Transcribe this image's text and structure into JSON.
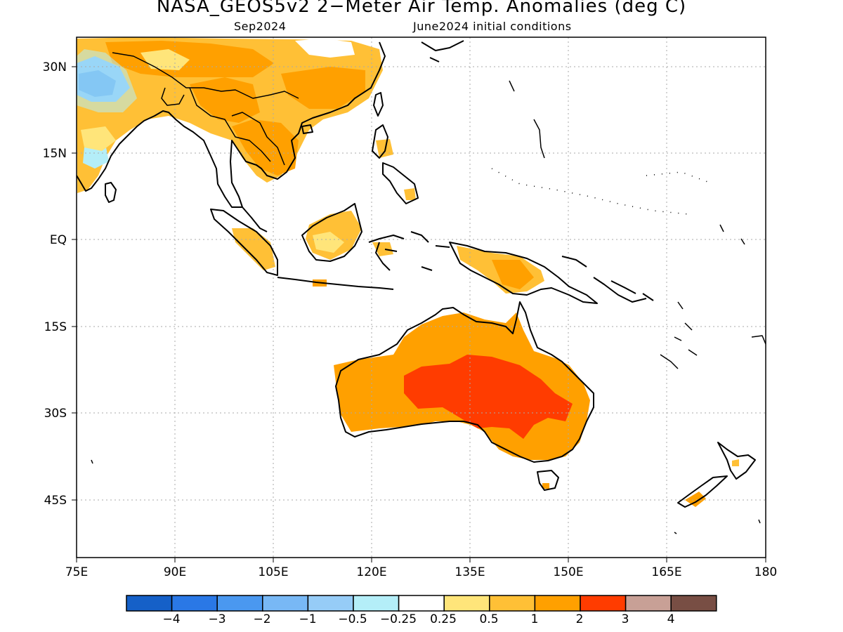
{
  "header": {
    "title": "NASA_GEOS5v2 2−Meter Air Temp. Anomalies (deg C)",
    "subtitle_left": "Sep2024",
    "subtitle_right": "June2024 initial conditions"
  },
  "map": {
    "lon_range": [
      75,
      180
    ],
    "lat_range": [
      -55,
      35
    ],
    "lon_ticks": [
      "75E",
      "90E",
      "105E",
      "120E",
      "135E",
      "150E",
      "165E",
      "180"
    ],
    "lat_ticks": [
      "30N",
      "15N",
      "EQ",
      "15S",
      "30S",
      "45S"
    ],
    "colors": {
      "land_outline": "#000000",
      "grid": "#aaaaaa"
    }
  },
  "colorbar": {
    "colors": [
      "#1560c8",
      "#2a78e6",
      "#4a98f0",
      "#78b8f5",
      "#96ccf7",
      "#b4eef8",
      "#ffffff",
      "#ffe57a",
      "#ffc036",
      "#ffa000",
      "#ff3c00",
      "#c8a096",
      "#784e44"
    ],
    "labels": [
      "−4",
      "−3",
      "−2",
      "−1",
      "−0.5",
      "−0.25",
      "0.25",
      "0.5",
      "1",
      "2",
      "3",
      "4"
    ]
  }
}
